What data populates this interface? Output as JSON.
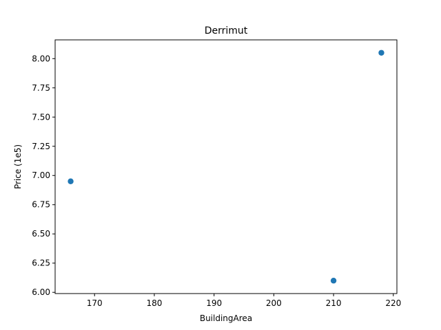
{
  "chart_data": {
    "type": "scatter",
    "title": "Derrimut",
    "xlabel": "BuildingArea",
    "ylabel": "Price (1e5)",
    "xlim": [
      163.4,
      220.6
    ],
    "ylim": [
      5.9895,
      8.1605
    ],
    "xticks": [
      170,
      180,
      190,
      200,
      210,
      220
    ],
    "xtick_labels": [
      "170",
      "180",
      "190",
      "200",
      "210",
      "220"
    ],
    "yticks": [
      6.0,
      6.25,
      6.5,
      6.75,
      7.0,
      7.25,
      7.5,
      7.75,
      8.0
    ],
    "ytick_labels": [
      "6.00",
      "6.25",
      "6.50",
      "6.75",
      "7.00",
      "7.25",
      "7.50",
      "7.75",
      "8.00"
    ],
    "grid": false,
    "series": [
      {
        "color": "#1f77b4",
        "points": [
          {
            "x": 166,
            "y": 6.95
          },
          {
            "x": 210,
            "y": 6.1
          },
          {
            "x": 218,
            "y": 8.05
          }
        ]
      }
    ]
  }
}
